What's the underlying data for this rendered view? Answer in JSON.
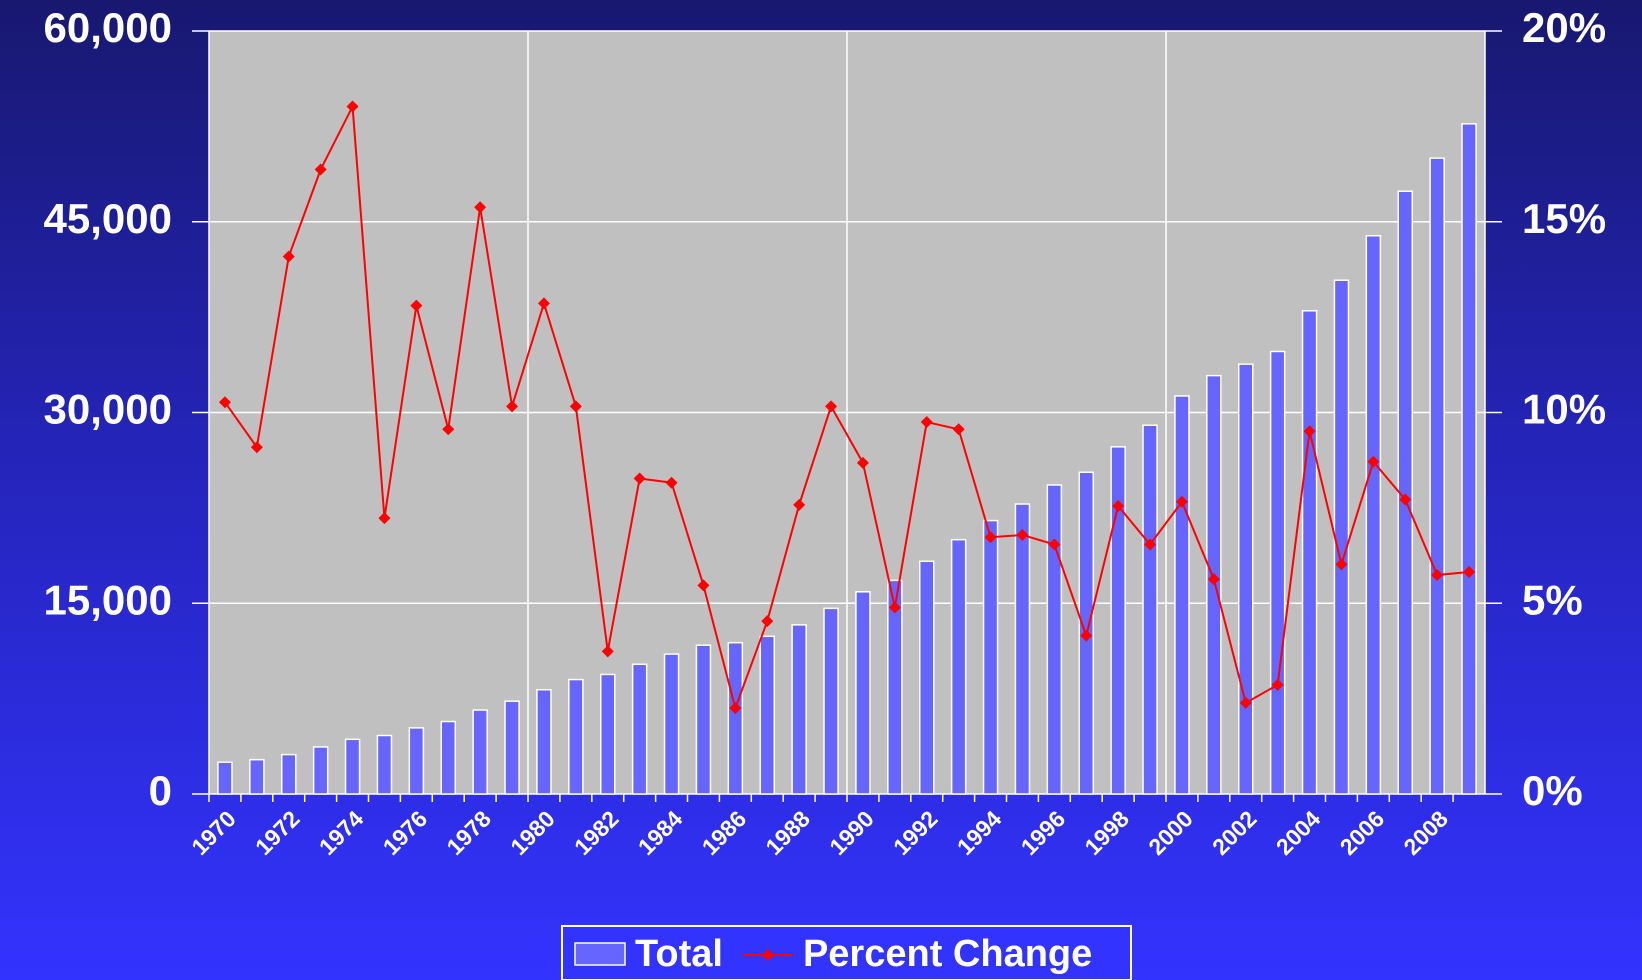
{
  "chart_data": {
    "type": "bar",
    "categories": [
      "1970",
      null,
      "1972",
      null,
      "1974",
      null,
      "1976",
      null,
      "1978",
      null,
      "1980",
      null,
      "1982",
      null,
      "1984",
      null,
      "1986",
      null,
      "1988",
      null,
      "1990",
      null,
      "1992",
      null,
      "1994",
      null,
      "1996",
      null,
      "1998",
      null,
      "2000",
      null,
      "2002",
      null,
      "2004",
      null,
      "2006",
      null,
      "2008",
      null
    ],
    "series": [
      {
        "name": "Total",
        "type": "bar",
        "color": "#6666ff",
        "values": [
          2500,
          2700,
          3100,
          3700,
          4300,
          4600,
          5200,
          5700,
          6600,
          7300,
          8200,
          9000,
          9400,
          10200,
          11000,
          11700,
          11900,
          12400,
          13300,
          14600,
          15900,
          16800,
          18300,
          20000,
          21500,
          22800,
          24300,
          25300,
          27300,
          29000,
          31300,
          32900,
          33800,
          34800,
          38000,
          40400,
          43900,
          47400,
          50000,
          52700
        ]
      },
      {
        "name": "Percent Change",
        "type": "line",
        "axis": "y2",
        "color": "#ff0000",
        "values": [
          10.27,
          9.09,
          14.09,
          16.37,
          18.02,
          7.23,
          12.8,
          9.56,
          15.38,
          10.16,
          12.86,
          10.16,
          3.74,
          8.27,
          8.16,
          5.47,
          2.25,
          4.53,
          7.58,
          10.16,
          8.68,
          4.89,
          9.75,
          9.56,
          6.73,
          6.79,
          6.54,
          4.15,
          7.55,
          6.54,
          7.66,
          5.63,
          2.39,
          2.86,
          9.51,
          6.02,
          8.71,
          7.72,
          5.74,
          5.82
        ]
      }
    ],
    "ylim": [
      0,
      60000
    ],
    "yticks": [
      0,
      {
        "value": 15000,
        "label": "15,000"
      },
      {
        "value": 30000,
        "label": "30,000"
      },
      {
        "value": 45000,
        "label": "45,000"
      },
      {
        "value": 60000,
        "label": "60,000"
      }
    ],
    "y2lim": [
      0,
      20
    ],
    "y2ticks": [
      {
        "value": 0,
        "label": "0%"
      },
      {
        "value": 5,
        "label": "5%"
      },
      {
        "value": 10,
        "label": "10%"
      },
      {
        "value": 15,
        "label": "15%"
      },
      {
        "value": 20,
        "label": "20%"
      }
    ],
    "grid": true,
    "legend": "bottom"
  }
}
